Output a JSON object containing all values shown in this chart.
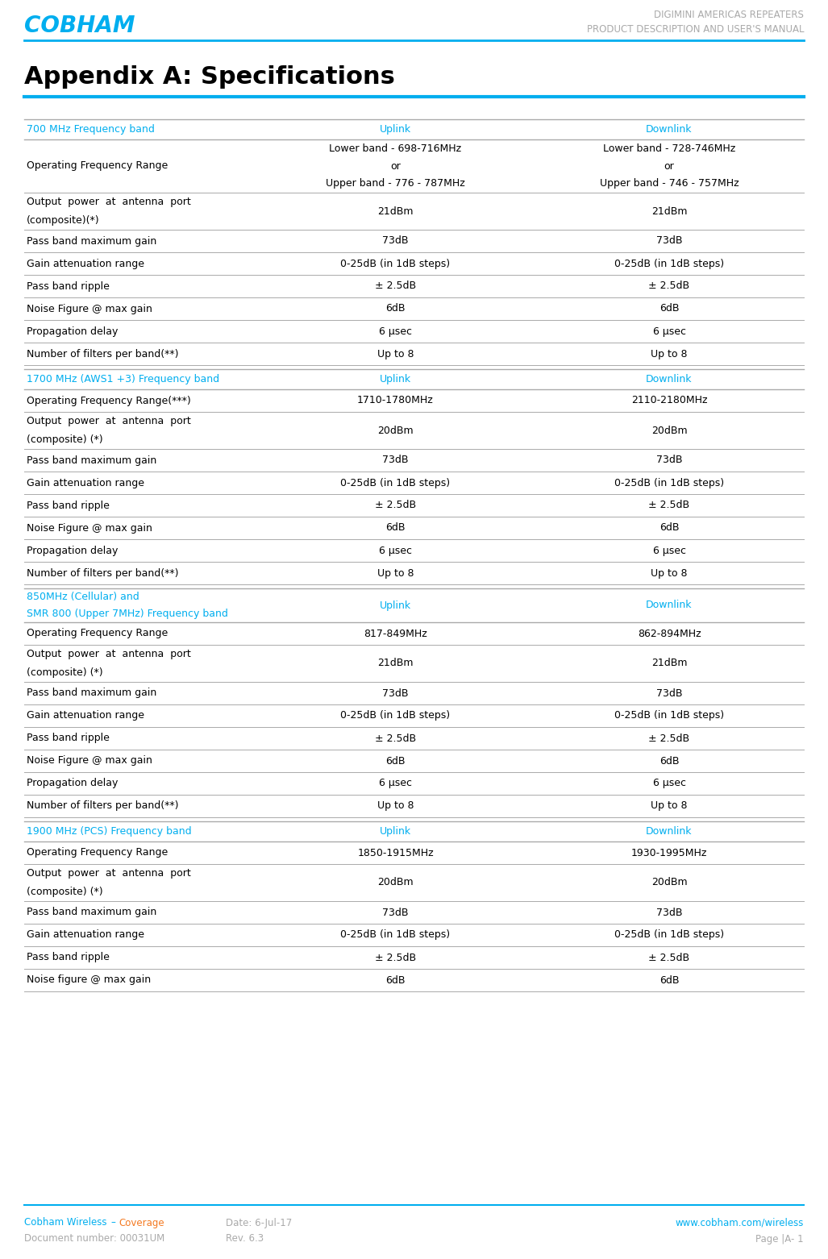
{
  "header_title1": "DIGIMINI AMERICAS REPEATERS",
  "header_title2": "PRODUCT DESCRIPTION AND USER'S MANUAL",
  "main_title": "Appendix A: Specifications",
  "footer_date_label": "Date: 6-Jul-17",
  "footer_right1": "www.cobham.com/wireless",
  "footer_left2": "Document number: 00031UM",
  "footer_rev": "Rev. 6.3",
  "footer_right2": "Page |A- 1",
  "cobham_blue": "#00AEEF",
  "cobham_orange": "#F47920",
  "header_gray": "#AAAAAA",
  "table_line_color": "#AAAAAA",
  "sections": [
    {
      "header": [
        "700 MHz Frequency band",
        "Uplink",
        "Downlink"
      ],
      "header_multiline": false,
      "rows": [
        {
          "col1": "Operating Frequency Range",
          "col2": "Lower band - 698-716MHz\nor\nUpper band - 776 - 787MHz",
          "col3": "Lower band - 728-746MHz\nor\nUpper band - 746 - 757MHz"
        },
        {
          "col1": "Output  power  at  antenna  port\n(composite)(*)",
          "col2": "21dBm",
          "col3": "21dBm"
        },
        {
          "col1": "Pass band maximum gain",
          "col2": "73dB",
          "col3": "73dB"
        },
        {
          "col1": "Gain attenuation range",
          "col2": "0-25dB (in 1dB steps)",
          "col3": "0-25dB (in 1dB steps)"
        },
        {
          "col1": "Pass band ripple",
          "col2": "± 2.5dB",
          "col3": "± 2.5dB"
        },
        {
          "col1": "Noise Figure @ max gain",
          "col2": "6dB",
          "col3": "6dB"
        },
        {
          "col1": "Propagation delay",
          "col2": "6 μsec",
          "col3": "6 μsec"
        },
        {
          "col1": "Number of filters per band(**)",
          "col2": "Up to 8",
          "col3": "Up to 8"
        }
      ]
    },
    {
      "header": [
        "1700 MHz (AWS1 +3) Frequency band",
        "Uplink",
        "Downlink"
      ],
      "header_multiline": false,
      "rows": [
        {
          "col1": "Operating Frequency Range(***)",
          "col2": "1710-1780MHz",
          "col3": "2110-2180MHz"
        },
        {
          "col1": "Output  power  at  antenna  port\n(composite) (*)",
          "col2": "20dBm",
          "col3": "20dBm"
        },
        {
          "col1": "Pass band maximum gain",
          "col2": "73dB",
          "col3": "73dB"
        },
        {
          "col1": "Gain attenuation range",
          "col2": "0-25dB (in 1dB steps)",
          "col3": "0-25dB (in 1dB steps)"
        },
        {
          "col1": "Pass band ripple",
          "col2": "± 2.5dB",
          "col3": "± 2.5dB"
        },
        {
          "col1": "Noise Figure @ max gain",
          "col2": "6dB",
          "col3": "6dB"
        },
        {
          "col1": "Propagation delay",
          "col2": "6 μsec",
          "col3": "6 μsec"
        },
        {
          "col1": "Number of filters per band(**)",
          "col2": "Up to 8",
          "col3": "Up to 8"
        }
      ]
    },
    {
      "header": [
        "850MHz (Cellular) and\nSMR 800 (Upper 7MHz) Frequency band",
        "Uplink",
        "Downlink"
      ],
      "header_multiline": true,
      "rows": [
        {
          "col1": "Operating Frequency Range",
          "col2": "817-849MHz",
          "col3": "862-894MHz"
        },
        {
          "col1": "Output  power  at  antenna  port\n(composite) (*)",
          "col2": "21dBm",
          "col3": "21dBm"
        },
        {
          "col1": "Pass band maximum gain",
          "col2": "73dB",
          "col3": "73dB"
        },
        {
          "col1": "Gain attenuation range",
          "col2": "0-25dB (in 1dB steps)",
          "col3": "0-25dB (in 1dB steps)"
        },
        {
          "col1": "Pass band ripple",
          "col2": "± 2.5dB",
          "col3": "± 2.5dB"
        },
        {
          "col1": "Noise Figure @ max gain",
          "col2": "6dB",
          "col3": "6dB"
        },
        {
          "col1": "Propagation delay",
          "col2": "6 μsec",
          "col3": "6 μsec"
        },
        {
          "col1": "Number of filters per band(**)",
          "col2": "Up to 8",
          "col3": "Up to 8"
        }
      ]
    },
    {
      "header": [
        "1900 MHz (PCS) Frequency band",
        "Uplink",
        "Downlink"
      ],
      "header_multiline": false,
      "rows": [
        {
          "col1": "Operating Frequency Range",
          "col2": "1850-1915MHz",
          "col3": "1930-1995MHz"
        },
        {
          "col1": "Output  power  at  antenna  port\n(composite) (*)",
          "col2": "20dBm",
          "col3": "20dBm"
        },
        {
          "col1": "Pass band maximum gain",
          "col2": "73dB",
          "col3": "73dB"
        },
        {
          "col1": "Gain attenuation range",
          "col2": "0-25dB (in 1dB steps)",
          "col3": "0-25dB (in 1dB steps)"
        },
        {
          "col1": "Pass band ripple",
          "col2": "± 2.5dB",
          "col3": "± 2.5dB"
        },
        {
          "col1": "Noise figure @ max gain",
          "col2": "6dB",
          "col3": "6dB"
        }
      ]
    }
  ]
}
